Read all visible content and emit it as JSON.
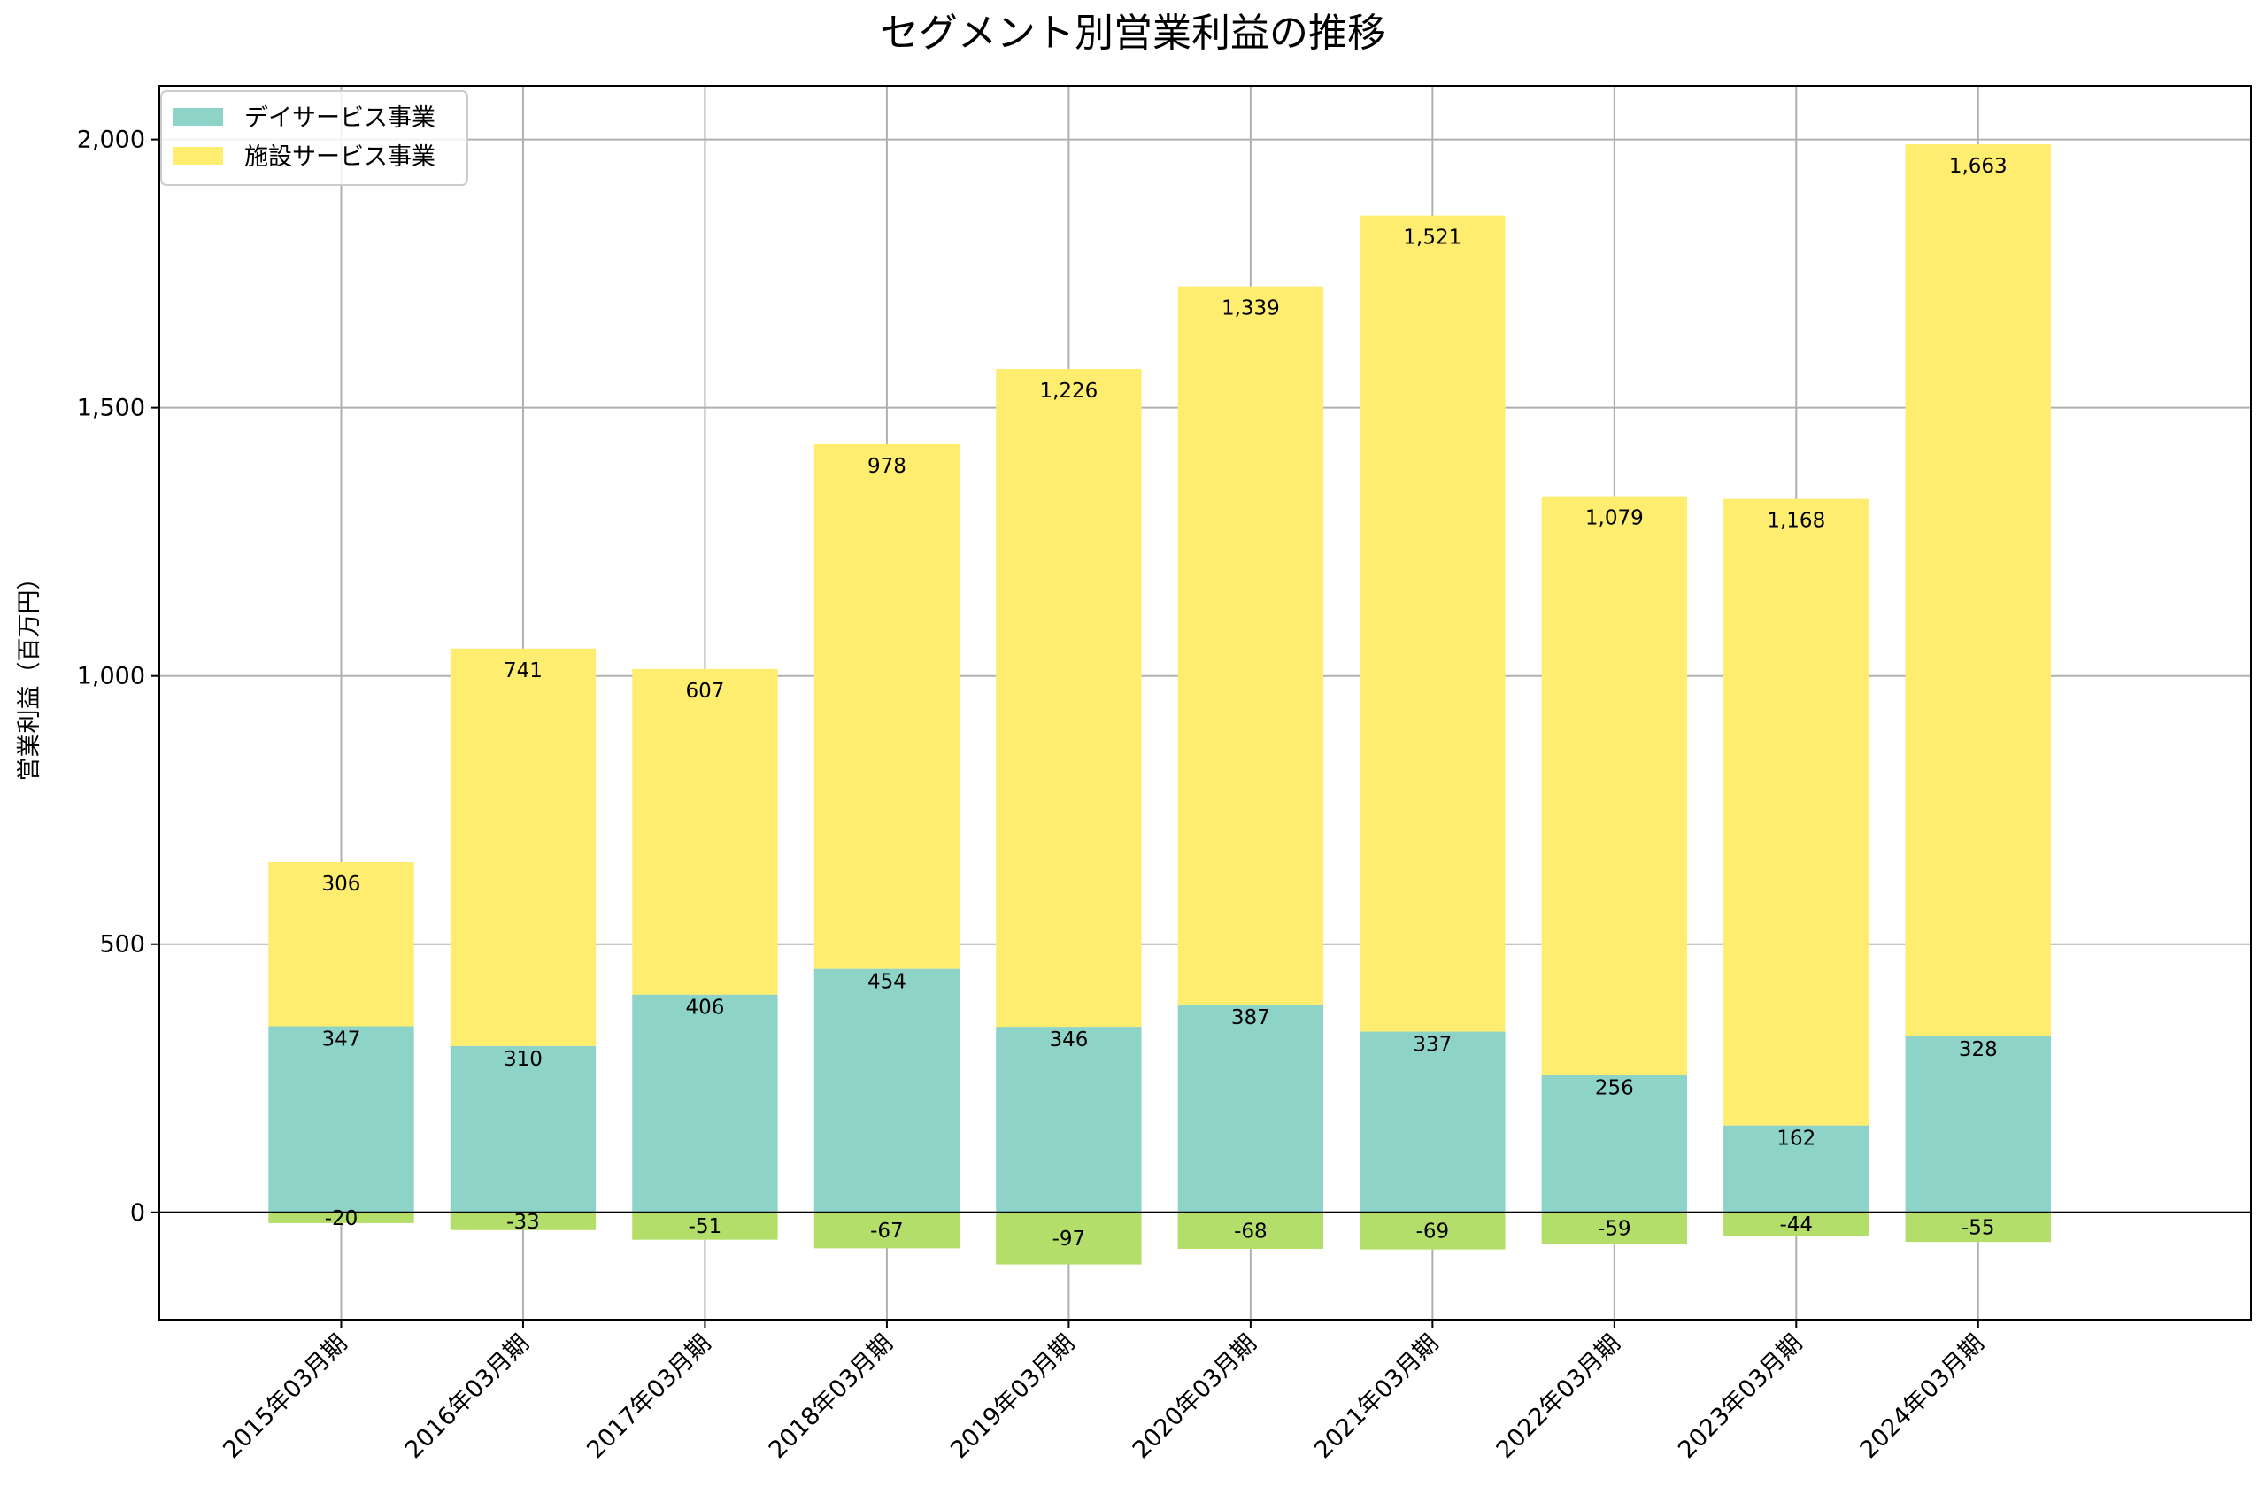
{
  "chart_data": {
    "type": "bar",
    "stacked": true,
    "title": "セグメント別営業利益の推移",
    "xlabel": "",
    "ylabel": "営業利益（百万円）",
    "ylim": [
      -200,
      2100
    ],
    "yticks": [
      0,
      500,
      1000,
      1500,
      2000
    ],
    "ytick_labels": [
      "0",
      "500",
      "1,000",
      "1,500",
      "2,000"
    ],
    "grid": true,
    "legend_position": "top-left",
    "categories": [
      "2015年03月期",
      "2016年03月期",
      "2017年03月期",
      "2018年03月期",
      "2019年03月期",
      "2020年03月期",
      "2021年03月期",
      "2022年03月期",
      "2023年03月期",
      "2024年03月期"
    ],
    "series": [
      {
        "name": "デイサービス事業",
        "color": "#8dd3c7",
        "values": [
          347,
          310,
          406,
          454,
          346,
          387,
          337,
          256,
          162,
          328
        ],
        "labels": [
          "347",
          "310",
          "406",
          "454",
          "346",
          "387",
          "337",
          "256",
          "162",
          "328"
        ]
      },
      {
        "name": "施設サービス事業",
        "color": "#ffed6f",
        "values": [
          306,
          741,
          607,
          978,
          1226,
          1339,
          1521,
          1079,
          1168,
          1663
        ],
        "labels": [
          "306",
          "741",
          "607",
          "978",
          "1,226",
          "1,339",
          "1,521",
          "1,079",
          "1,168",
          "1,663"
        ]
      },
      {
        "color": "#b3de69",
        "values": [
          -20,
          -33,
          -51,
          -67,
          -97,
          -68,
          -69,
          -59,
          -44,
          -55
        ],
        "labels": [
          "-20",
          "-33",
          "-51",
          "-67",
          "-97",
          "-68",
          "-69",
          "-59",
          "-44",
          "-55"
        ]
      }
    ]
  }
}
